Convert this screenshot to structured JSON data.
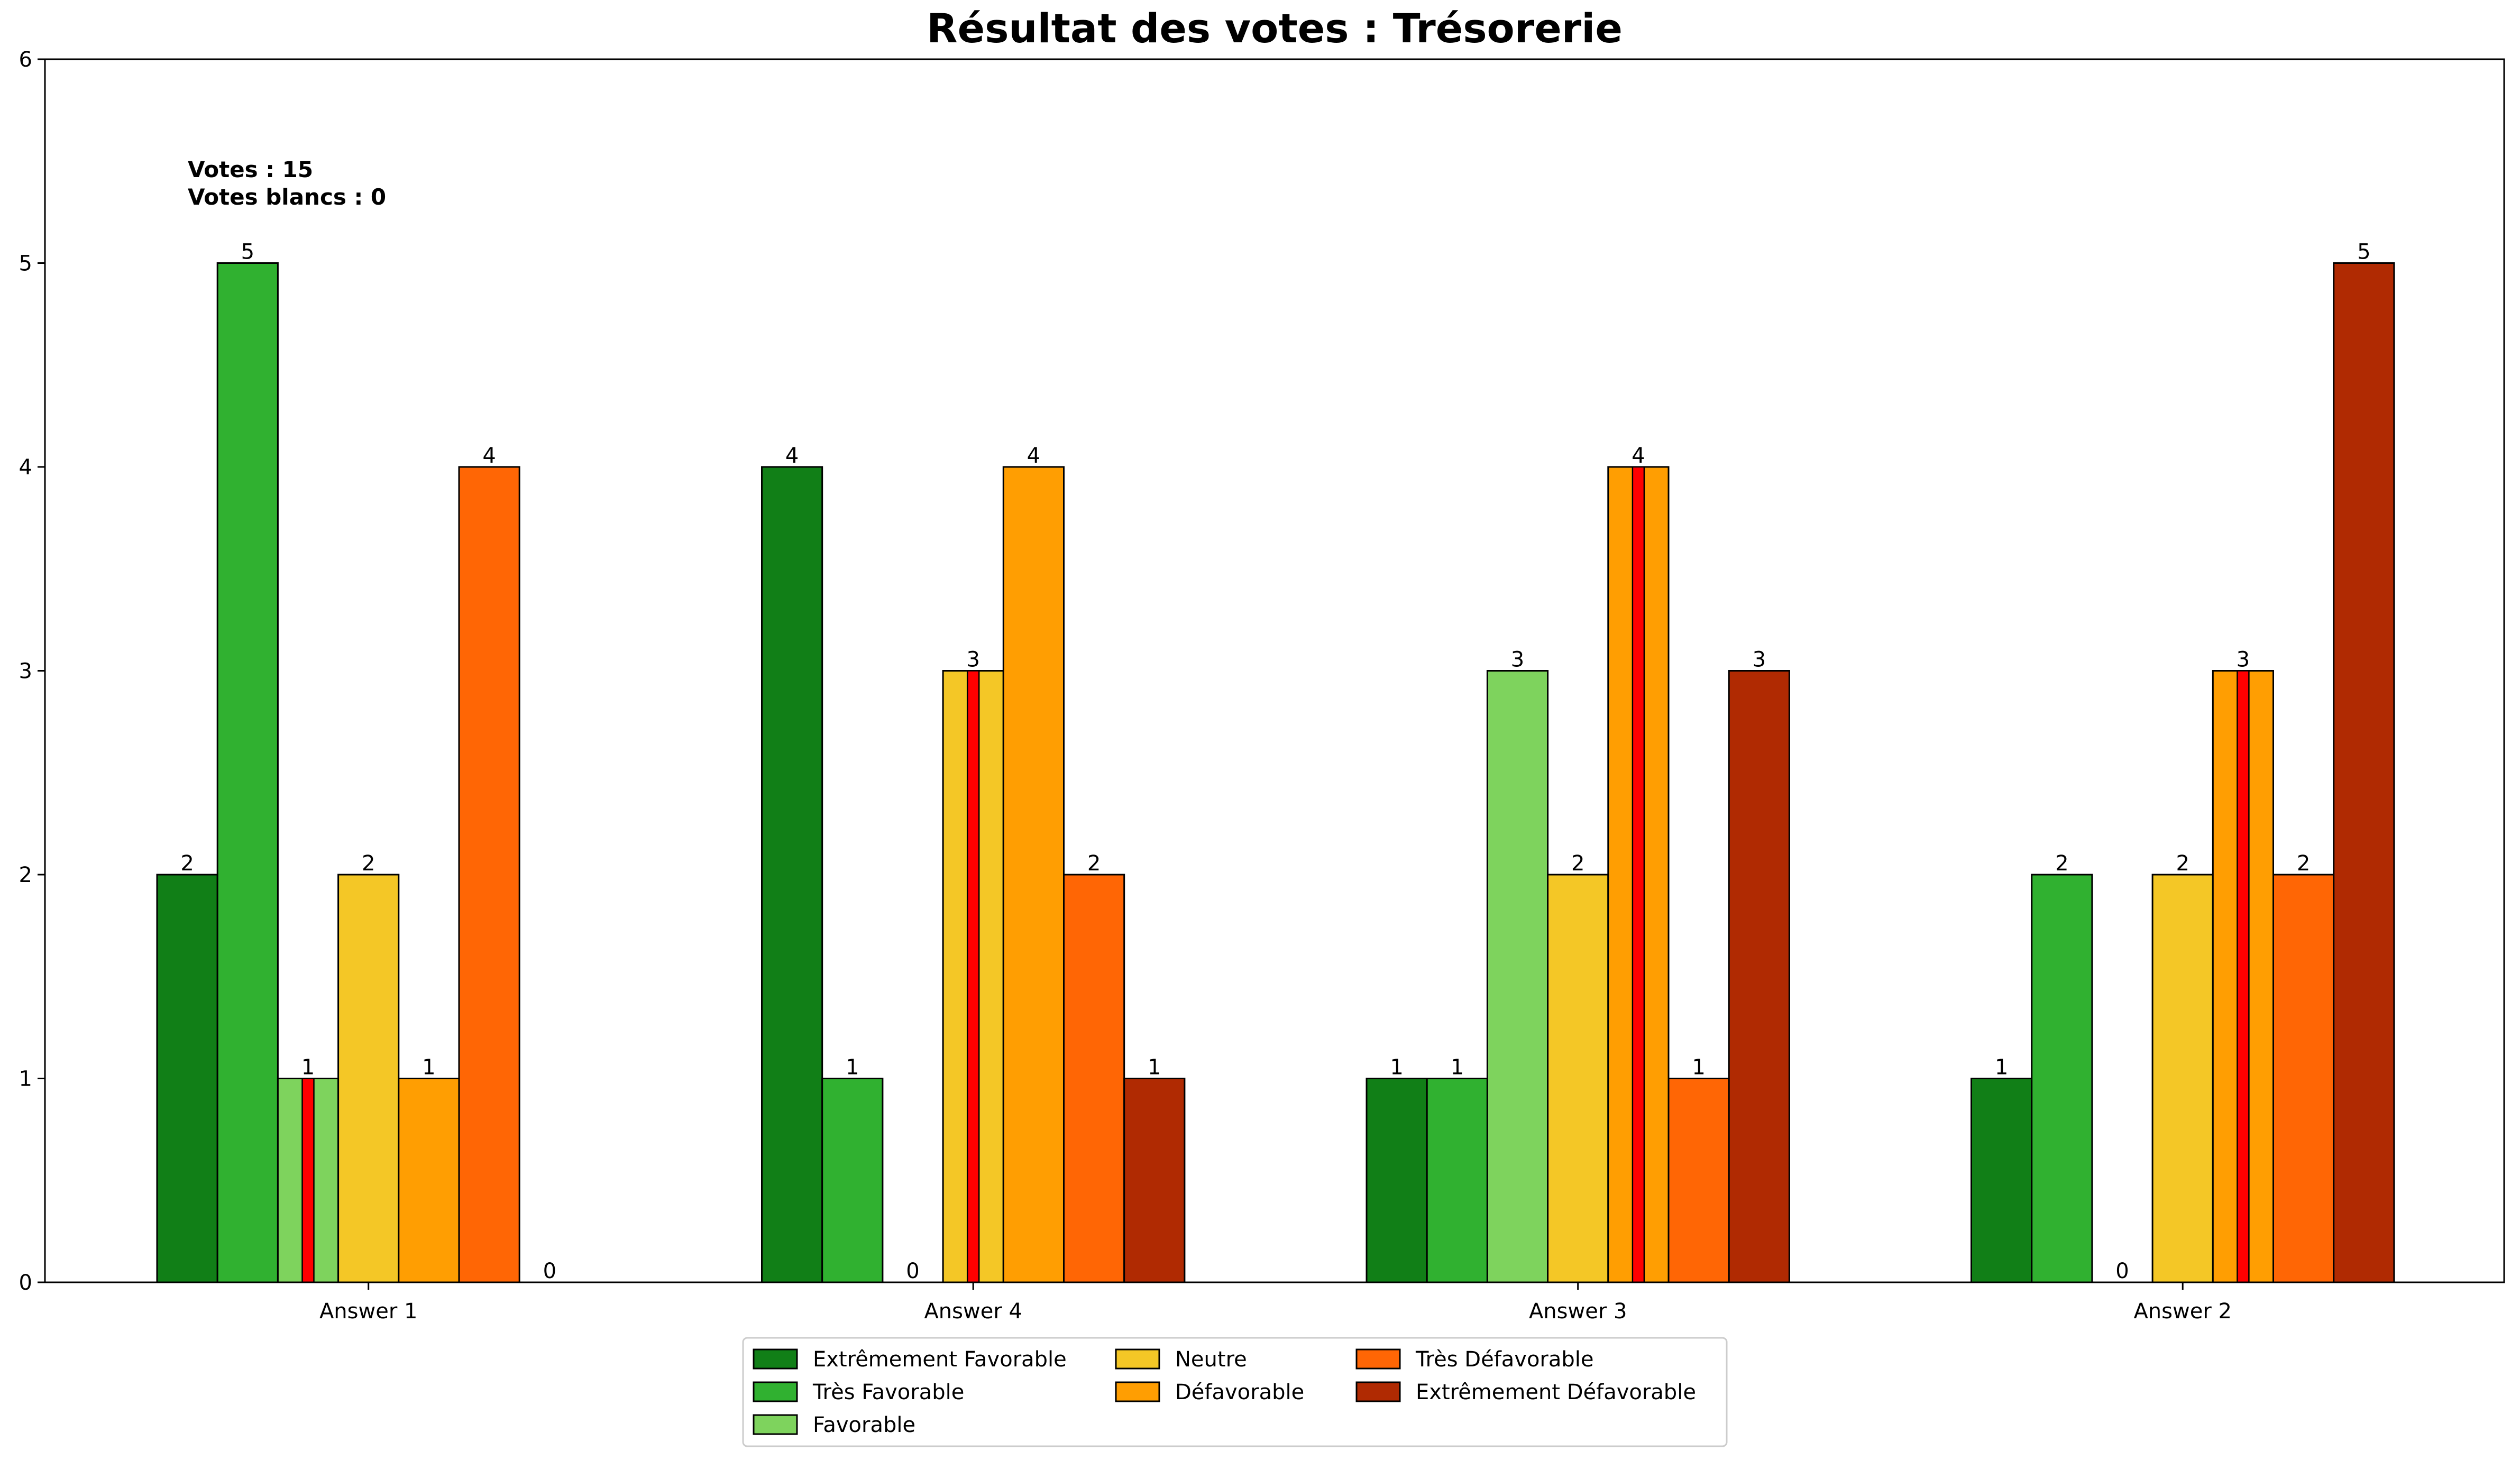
{
  "chart_data": {
    "type": "bar",
    "title": "Résultat des votes : Trésorerie",
    "xlabel": "",
    "ylabel": "",
    "ylim": [
      0,
      6
    ],
    "yticks": [
      "0",
      "1",
      "2",
      "3",
      "4",
      "5",
      "6"
    ],
    "categories": [
      "Answer 1",
      "Answer 4",
      "Answer 3",
      "Answer 2"
    ],
    "series": [
      {
        "name": "Extrêmement Favorable",
        "color": "#117F17",
        "values": [
          2,
          4,
          1,
          1
        ]
      },
      {
        "name": "Très Favorable",
        "color": "#30B130",
        "values": [
          5,
          1,
          1,
          2
        ]
      },
      {
        "name": "Favorable",
        "color": "#7ED35D",
        "values": [
          1,
          0,
          3,
          0
        ]
      },
      {
        "name": "Neutre",
        "color": "#F4C726",
        "values": [
          2,
          3,
          2,
          2
        ]
      },
      {
        "name": "Défavorable",
        "color": "#FF9E02",
        "values": [
          1,
          4,
          4,
          3
        ]
      },
      {
        "name": "Très Défavorable",
        "color": "#FF6605",
        "values": [
          4,
          2,
          1,
          2
        ]
      },
      {
        "name": "Extrêmement Défavorable",
        "color": "#B02A02",
        "values": [
          0,
          1,
          3,
          5
        ]
      }
    ],
    "median_series_index": [
      2,
      3,
      4,
      4
    ],
    "median_marker_color": "#FF0000",
    "annotation": {
      "votes": "Votes : 15",
      "blank_votes": "Votes blancs : 0"
    },
    "legend_position": "bottom-center",
    "grid": false
  }
}
